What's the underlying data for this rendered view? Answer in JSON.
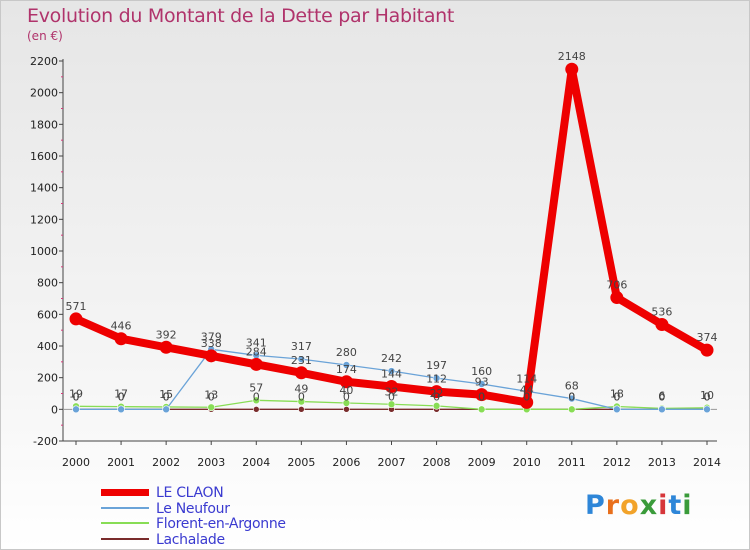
{
  "title": "Evolution du Montant de la Dette par Habitant",
  "unit": "(en €)",
  "logo": "Proxiti",
  "logo_colors": [
    "#2e86d8",
    "#e86f1c",
    "#f2a32a",
    "#3a9b3a",
    "#d6363a",
    "#2e86d8",
    "#3a9b3a"
  ],
  "chart_data": {
    "type": "line",
    "title": "Evolution du Montant de la Dette par Habitant",
    "ylabel": "(en €)",
    "xlabel": "",
    "ylim": [
      -200,
      2200
    ],
    "yticks": [
      -200,
      0,
      200,
      400,
      600,
      800,
      1000,
      1200,
      1400,
      1600,
      1800,
      2000,
      2200
    ],
    "categories": [
      "2000",
      "2001",
      "2002",
      "2003",
      "2004",
      "2005",
      "2006",
      "2007",
      "2008",
      "2009",
      "2010",
      "2011",
      "2012",
      "2013",
      "2014"
    ],
    "series": [
      {
        "name": "LE CLAON",
        "color": "#ee0000",
        "values": [
          571,
          446,
          392,
          338,
          284,
          231,
          174,
          144,
          112,
          93,
          44,
          2148,
          706,
          536,
          374
        ],
        "labels": [
          "571",
          "446",
          "392",
          "338",
          "284",
          "231",
          "174",
          "144",
          "112",
          "93",
          "44",
          "2148",
          "706",
          "536",
          "374"
        ]
      },
      {
        "name": "Le Neufour",
        "color": "#6aa3d8",
        "values": [
          0,
          0,
          0,
          379,
          341,
          317,
          280,
          242,
          197,
          160,
          114,
          68,
          0,
          0,
          0
        ],
        "labels": [
          "0",
          "0",
          "0",
          "379",
          "341",
          "317",
          "280",
          "242",
          "197",
          "160",
          "114",
          "68",
          "0",
          "0",
          "0"
        ]
      },
      {
        "name": "Florent-en-Argonne",
        "color": "#88dd55",
        "values": [
          19,
          17,
          15,
          13,
          57,
          49,
          40,
          32,
          22,
          0,
          0,
          0,
          18,
          6,
          10
        ],
        "labels": [
          "19",
          "17",
          "15",
          "13",
          "57",
          "49",
          "40",
          "32",
          "22",
          "0",
          "0",
          "0",
          "18",
          "6",
          "10"
        ]
      },
      {
        "name": "Lachalade",
        "color": "#7a2c2c",
        "values": [
          0,
          0,
          0,
          0,
          0,
          0,
          0,
          0,
          0,
          0,
          0,
          0,
          0,
          0,
          0
        ],
        "labels": [
          "0",
          "0",
          "0",
          "0",
          "0",
          "0",
          "0",
          "0",
          "0",
          "0",
          "0",
          "0",
          "0",
          "0",
          "0"
        ]
      }
    ],
    "grid": false,
    "legend": "bottom-left"
  }
}
